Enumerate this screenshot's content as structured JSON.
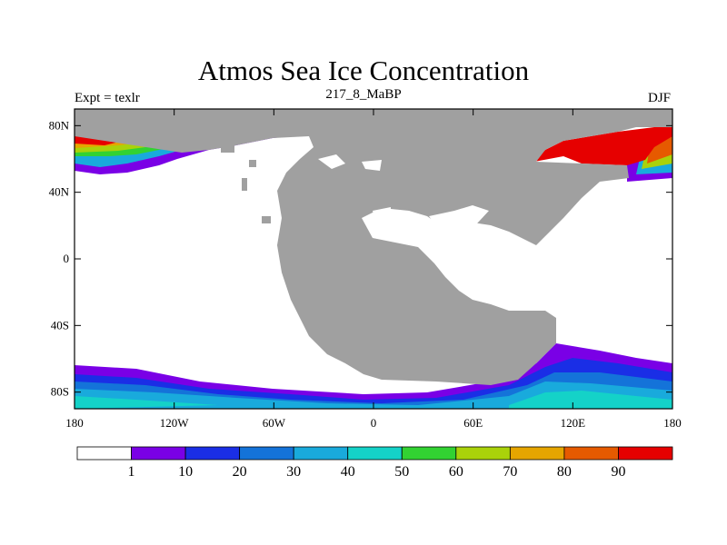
{
  "header": {
    "title": "Atmos Sea Ice Concentration",
    "experiment": "Expt = texlr",
    "run": "217_8_MaBP",
    "season": "DJF"
  },
  "axes": {
    "lon_ticks": [
      "180",
      "120W",
      "60W",
      "0",
      "60E",
      "120E",
      "180"
    ],
    "lat_ticks": [
      "80N",
      "40N",
      "0",
      "40S",
      "80S"
    ]
  },
  "colorbar": {
    "colors": [
      "#ffffff",
      "#7a00e6",
      "#1a2ee6",
      "#1473d9",
      "#19aadc",
      "#14d2c8",
      "#32d232",
      "#aad20a",
      "#e6a500",
      "#e65a00",
      "#e60000"
    ],
    "labels": [
      "1",
      "10",
      "20",
      "30",
      "40",
      "50",
      "60",
      "70",
      "80",
      "90"
    ]
  },
  "colors": {
    "land": "#a0a0a0",
    "frame": "#000000"
  }
}
